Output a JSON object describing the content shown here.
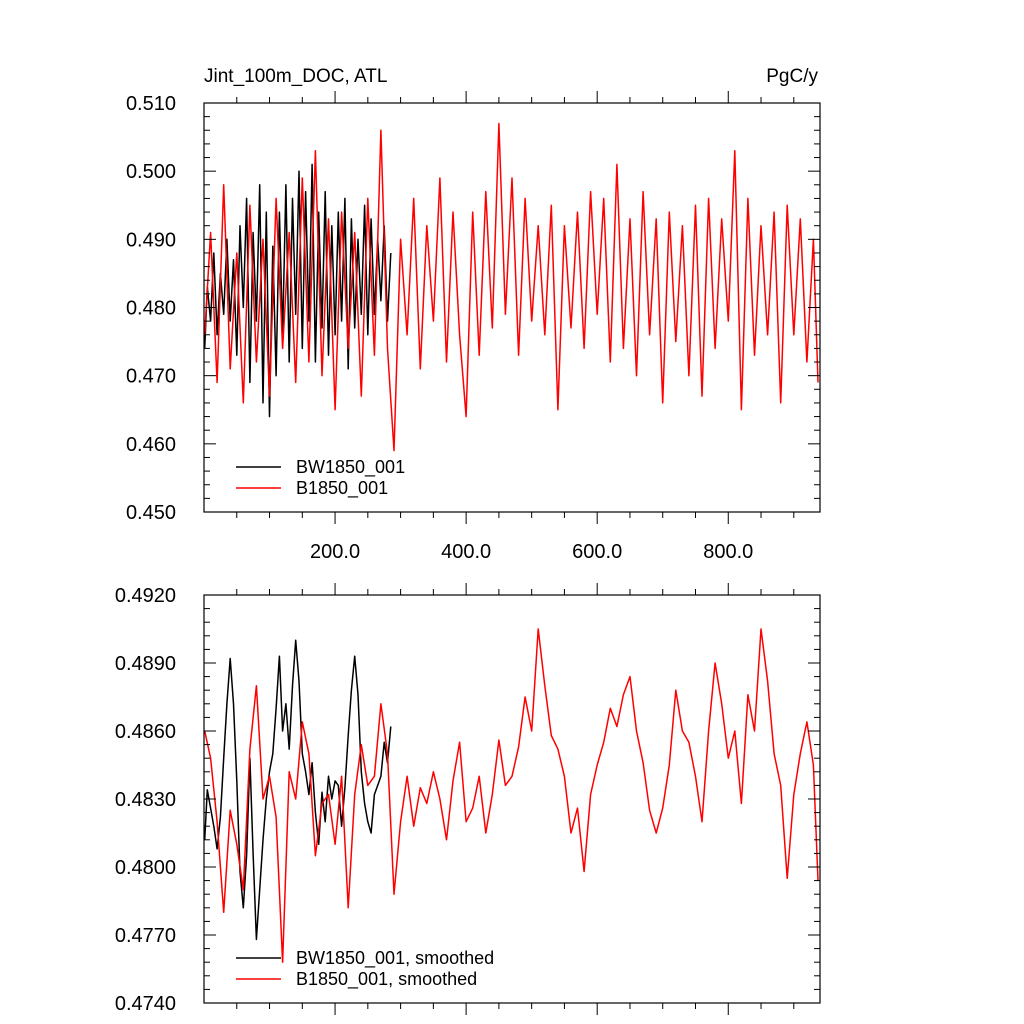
{
  "chart_data": [
    {
      "type": "line",
      "title_left": "Jint_100m_DOC, ATL",
      "title_right": "PgC/y",
      "xlim": [
        0,
        940
      ],
      "ylim": [
        0.45,
        0.51
      ],
      "xticks": [
        200,
        400,
        600,
        800
      ],
      "xtick_labels": [
        "200.0",
        "400.0",
        "600.0",
        "800.0"
      ],
      "yticks": [
        0.45,
        0.46,
        0.47,
        0.48,
        0.49,
        0.5,
        0.51
      ],
      "ytick_labels": [
        "0.450",
        "0.460",
        "0.470",
        "0.480",
        "0.490",
        "0.500",
        "0.510"
      ],
      "legend_position": "bottom-left",
      "series": [
        {
          "name": "BW1850_001",
          "color": "#000000",
          "x": [
            1,
            5,
            10,
            15,
            20,
            25,
            30,
            35,
            40,
            45,
            50,
            55,
            60,
            65,
            70,
            75,
            80,
            85,
            90,
            95,
            100,
            105,
            110,
            115,
            120,
            125,
            130,
            135,
            140,
            145,
            150,
            155,
            160,
            165,
            170,
            175,
            180,
            185,
            190,
            195,
            200,
            205,
            210,
            215,
            220,
            225,
            230,
            235,
            240,
            245,
            250,
            255,
            260,
            265,
            270,
            275,
            280,
            285
          ],
          "values": [
            0.474,
            0.483,
            0.478,
            0.488,
            0.476,
            0.485,
            0.479,
            0.49,
            0.478,
            0.487,
            0.473,
            0.492,
            0.48,
            0.496,
            0.469,
            0.491,
            0.478,
            0.498,
            0.466,
            0.494,
            0.464,
            0.489,
            0.47,
            0.494,
            0.476,
            0.498,
            0.472,
            0.496,
            0.479,
            0.5,
            0.474,
            0.497,
            0.478,
            0.501,
            0.472,
            0.494,
            0.477,
            0.497,
            0.473,
            0.492,
            0.476,
            0.494,
            0.478,
            0.496,
            0.471,
            0.493,
            0.477,
            0.49,
            0.479,
            0.495,
            0.476,
            0.493,
            0.479,
            0.49,
            0.481,
            0.492,
            0.478,
            0.488
          ]
        },
        {
          "name": "B1850_001",
          "color": "#ff0000",
          "x": [
            1,
            10,
            20,
            30,
            40,
            50,
            60,
            70,
            80,
            90,
            100,
            110,
            120,
            130,
            140,
            150,
            160,
            170,
            180,
            190,
            200,
            210,
            220,
            230,
            240,
            250,
            260,
            270,
            280,
            290,
            300,
            310,
            320,
            330,
            340,
            350,
            360,
            370,
            380,
            390,
            400,
            410,
            420,
            430,
            440,
            450,
            460,
            470,
            480,
            490,
            500,
            510,
            520,
            530,
            540,
            550,
            560,
            570,
            580,
            590,
            600,
            610,
            620,
            630,
            640,
            650,
            660,
            670,
            680,
            690,
            700,
            710,
            720,
            730,
            740,
            750,
            760,
            770,
            780,
            790,
            800,
            810,
            820,
            830,
            840,
            850,
            860,
            870,
            880,
            890,
            900,
            910,
            920,
            930,
            937
          ],
          "values": [
            0.476,
            0.491,
            0.469,
            0.498,
            0.471,
            0.488,
            0.466,
            0.495,
            0.472,
            0.49,
            0.467,
            0.496,
            0.474,
            0.491,
            0.469,
            0.499,
            0.472,
            0.503,
            0.47,
            0.493,
            0.465,
            0.494,
            0.474,
            0.491,
            0.467,
            0.496,
            0.473,
            0.506,
            0.474,
            0.459,
            0.49,
            0.476,
            0.496,
            0.471,
            0.492,
            0.478,
            0.499,
            0.472,
            0.494,
            0.476,
            0.464,
            0.494,
            0.473,
            0.497,
            0.477,
            0.507,
            0.479,
            0.499,
            0.473,
            0.496,
            0.478,
            0.492,
            0.476,
            0.495,
            0.465,
            0.492,
            0.477,
            0.494,
            0.474,
            0.497,
            0.479,
            0.496,
            0.472,
            0.501,
            0.474,
            0.493,
            0.47,
            0.497,
            0.476,
            0.493,
            0.466,
            0.494,
            0.475,
            0.492,
            0.47,
            0.495,
            0.467,
            0.496,
            0.474,
            0.493,
            0.478,
            0.503,
            0.465,
            0.496,
            0.473,
            0.492,
            0.476,
            0.494,
            0.466,
            0.495,
            0.476,
            0.493,
            0.472,
            0.49,
            0.469
          ]
        }
      ]
    },
    {
      "type": "line",
      "xlim": [
        0,
        940
      ],
      "ylim": [
        0.474,
        0.492
      ],
      "xticks": [
        200,
        400,
        600,
        800
      ],
      "yticks": [
        0.474,
        0.477,
        0.48,
        0.483,
        0.486,
        0.489,
        0.492
      ],
      "ytick_labels": [
        "0.4740",
        "0.4770",
        "0.4800",
        "0.4830",
        "0.4860",
        "0.4890",
        "0.4920"
      ],
      "legend_position": "bottom-left",
      "series": [
        {
          "name": "BW1850_001, smoothed",
          "color": "#000000",
          "x": [
            1,
            5,
            10,
            15,
            20,
            25,
            30,
            35,
            40,
            45,
            50,
            55,
            60,
            65,
            70,
            75,
            80,
            85,
            90,
            95,
            100,
            105,
            110,
            115,
            120,
            125,
            130,
            135,
            140,
            145,
            150,
            155,
            160,
            165,
            170,
            175,
            180,
            185,
            190,
            195,
            200,
            205,
            210,
            215,
            220,
            225,
            230,
            235,
            240,
            245,
            250,
            255,
            260,
            265,
            270,
            275,
            280,
            285
          ],
          "values": [
            0.4812,
            0.4834,
            0.4826,
            0.4818,
            0.4808,
            0.4822,
            0.4848,
            0.4872,
            0.4892,
            0.4872,
            0.4838,
            0.4798,
            0.4782,
            0.4805,
            0.4848,
            0.4806,
            0.4768,
            0.479,
            0.4812,
            0.483,
            0.4842,
            0.485,
            0.487,
            0.4893,
            0.486,
            0.4872,
            0.4852,
            0.488,
            0.49,
            0.4882,
            0.485,
            0.4842,
            0.4832,
            0.4846,
            0.4824,
            0.481,
            0.4833,
            0.482,
            0.484,
            0.483,
            0.4838,
            0.4836,
            0.4818,
            0.4835,
            0.4858,
            0.4878,
            0.4893,
            0.4876,
            0.4842,
            0.4828,
            0.482,
            0.4815,
            0.4832,
            0.4836,
            0.484,
            0.4855,
            0.4846,
            0.4862
          ]
        },
        {
          "name": "B1850_001, smoothed",
          "color": "#ff0000",
          "x": [
            1,
            10,
            20,
            30,
            40,
            50,
            60,
            70,
            80,
            90,
            100,
            110,
            120,
            130,
            140,
            150,
            160,
            170,
            180,
            190,
            200,
            210,
            220,
            230,
            240,
            250,
            260,
            270,
            280,
            290,
            300,
            310,
            320,
            330,
            340,
            350,
            360,
            370,
            380,
            390,
            400,
            410,
            420,
            430,
            440,
            450,
            460,
            470,
            480,
            490,
            500,
            510,
            520,
            530,
            540,
            550,
            560,
            570,
            580,
            590,
            600,
            610,
            620,
            630,
            640,
            650,
            660,
            670,
            680,
            690,
            700,
            710,
            720,
            730,
            740,
            750,
            760,
            770,
            780,
            790,
            800,
            810,
            820,
            830,
            840,
            850,
            860,
            870,
            880,
            890,
            900,
            910,
            920,
            930,
            937
          ],
          "values": [
            0.486,
            0.4848,
            0.482,
            0.478,
            0.4825,
            0.481,
            0.479,
            0.4852,
            0.488,
            0.483,
            0.484,
            0.4822,
            0.4758,
            0.4842,
            0.483,
            0.4864,
            0.485,
            0.4805,
            0.4828,
            0.4832,
            0.481,
            0.484,
            0.4782,
            0.4832,
            0.4854,
            0.4836,
            0.484,
            0.4872,
            0.485,
            0.4788,
            0.482,
            0.484,
            0.4818,
            0.4835,
            0.4828,
            0.4842,
            0.483,
            0.4812,
            0.4838,
            0.4855,
            0.482,
            0.4826,
            0.484,
            0.4815,
            0.4832,
            0.4856,
            0.4836,
            0.484,
            0.4853,
            0.4875,
            0.486,
            0.4905,
            0.488,
            0.4858,
            0.4852,
            0.484,
            0.4815,
            0.4826,
            0.4798,
            0.4832,
            0.4845,
            0.4855,
            0.487,
            0.4862,
            0.4876,
            0.4884,
            0.486,
            0.4846,
            0.4825,
            0.4815,
            0.4826,
            0.4845,
            0.4878,
            0.486,
            0.4855,
            0.484,
            0.482,
            0.486,
            0.489,
            0.4872,
            0.4848,
            0.486,
            0.4828,
            0.4876,
            0.486,
            0.4905,
            0.4882,
            0.485,
            0.4836,
            0.4795,
            0.4832,
            0.485,
            0.4864,
            0.4845,
            0.4794
          ]
        }
      ]
    }
  ]
}
